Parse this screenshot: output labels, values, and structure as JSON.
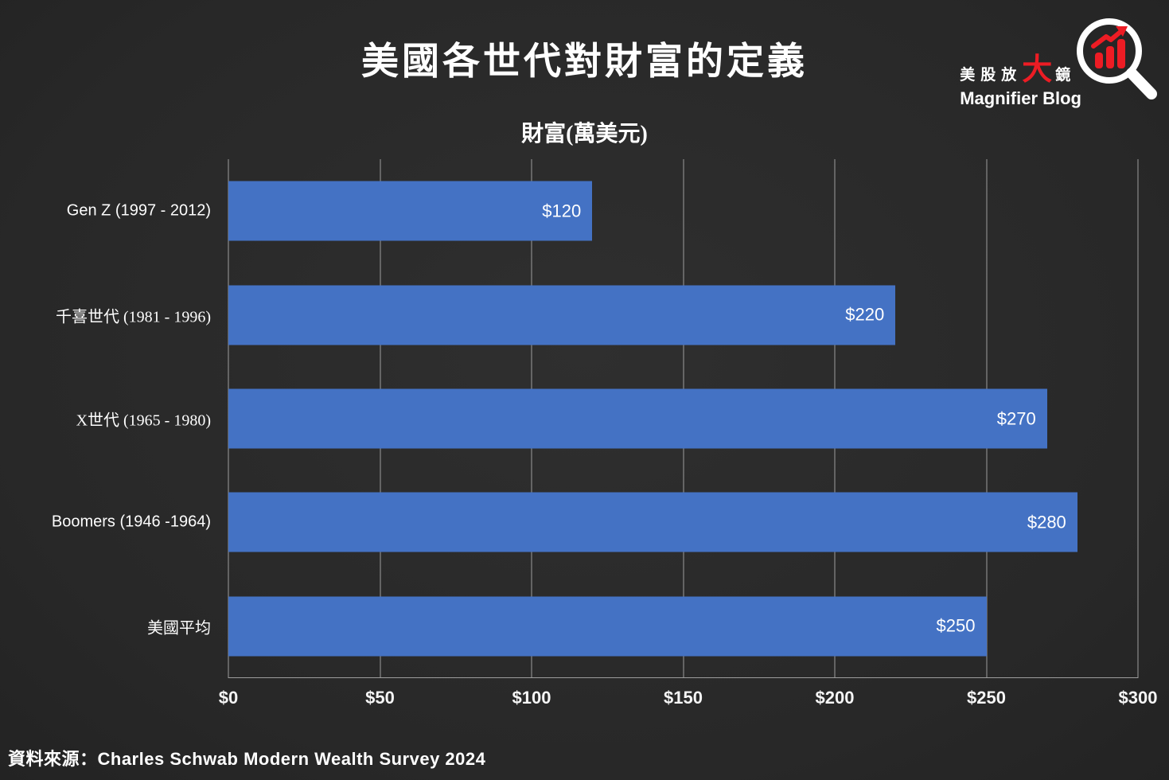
{
  "header": {
    "title": "美國各世代對財富的定義",
    "logo": {
      "cjk_prefix": "美股放",
      "cjk_big": "大",
      "cjk_suffix": "鏡",
      "subtitle": "Magnifier Blog",
      "icon": "magnifier-bar-chart-icon",
      "accent_color": "#ed1c24"
    }
  },
  "chart_data": {
    "type": "bar",
    "orientation": "horizontal",
    "title": "財富(萬美元)",
    "categories": [
      "Gen Z (1997 - 2012)",
      "千喜世代 (1981 - 1996)",
      "X世代 (1965 - 1980)",
      "Boomers (1946 -1964)",
      "美國平均"
    ],
    "values": [
      120,
      220,
      270,
      280,
      250
    ],
    "value_labels": [
      "$120",
      "$220",
      "$270",
      "$280",
      "$250"
    ],
    "xlim": [
      0,
      300
    ],
    "x_ticks": [
      0,
      50,
      100,
      150,
      200,
      250,
      300
    ],
    "x_tick_labels": [
      "$0",
      "$50",
      "$100",
      "$150",
      "$200",
      "$250",
      "$300"
    ],
    "bar_color": "#4472c4",
    "grid": true,
    "gridline_color": "#9d9d9d",
    "background_color": "#2b2b2b",
    "legend": "none"
  },
  "footer": {
    "source": "資料來源：Charles Schwab Modern Wealth Survey 2024"
  }
}
